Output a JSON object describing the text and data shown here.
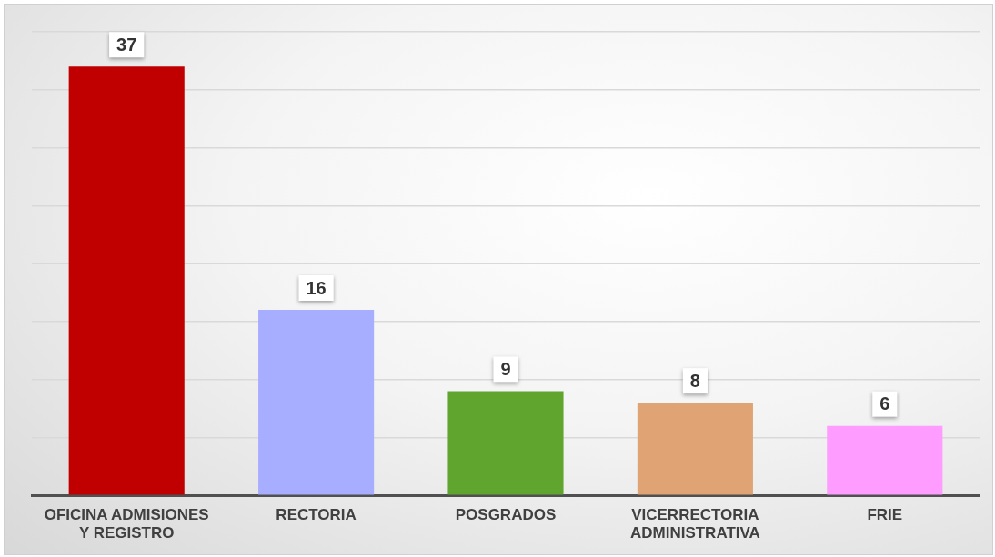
{
  "chart_data": {
    "type": "bar",
    "categories": [
      "OFICINA ADMISIONES Y REGISTRO",
      "RECTORIA",
      "POSGRADOS",
      "VICERRECTORIA ADMINISTRATIVA",
      "FRIE"
    ],
    "values": [
      37,
      16,
      9,
      8,
      6
    ],
    "colors": [
      "#c00000",
      "#a8aeff",
      "#5fa52e",
      "#e0a474",
      "#ff9cff"
    ],
    "grid": "y",
    "tick_labels": "x",
    "data_labels": true,
    "legend": false
  }
}
